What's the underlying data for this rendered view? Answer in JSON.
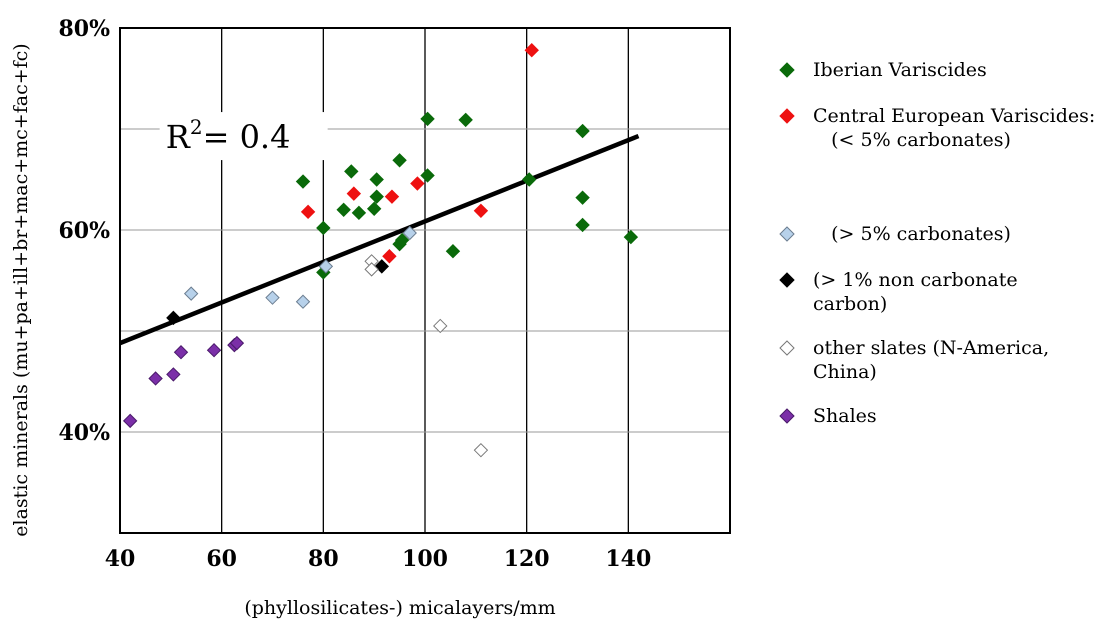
{
  "chart_data": {
    "type": "scatter",
    "xlabel": "(phyllosilicates-) micalayers/mm",
    "ylabel": "elastic minerals (mu+pa+ill+br+mac+mc+fac+fc)",
    "xlim": [
      40,
      160
    ],
    "ylim": [
      30,
      80
    ],
    "x_ticks": [
      "40",
      "60",
      "80",
      "100",
      "120",
      "140"
    ],
    "y_ticks": [
      {
        "value": 80,
        "label": "80%"
      },
      {
        "value": 60,
        "label": "60%"
      },
      {
        "value": 40,
        "label": "40%"
      }
    ],
    "grid": true,
    "legend_position": "right",
    "annotation": {
      "base": "R",
      "sup": "2",
      "rest": "= 0.4"
    },
    "trendline": {
      "x": [
        40,
        142
      ],
      "y": [
        48.8,
        69.3
      ]
    },
    "series": [
      {
        "name": "Iberian Variscides",
        "color": "#0a6a0a",
        "stroke": "#0a6a0a",
        "x": [
          76,
          80,
          80,
          84,
          85.5,
          87,
          90,
          90.5,
          90.5,
          95,
          95,
          95.5,
          100.5,
          100.5,
          105.5,
          108,
          120.5,
          131,
          131,
          131,
          140.5
        ],
        "y": [
          64.8,
          60.2,
          55.8,
          62,
          65.8,
          61.7,
          62.1,
          63.3,
          65,
          66.9,
          58.6,
          59.0,
          71,
          65.4,
          57.9,
          70.9,
          65.0,
          69.8,
          63.2,
          60.5,
          59.3
        ]
      },
      {
        "name": "Central European Variscides:\n   (< 5% carbonates)",
        "color": "#ee1111",
        "stroke": "#ee1111",
        "x": [
          77,
          86,
          93.5,
          93,
          98.5,
          111,
          121
        ],
        "y": [
          61.8,
          63.6,
          63.3,
          57.4,
          64.6,
          61.9,
          77.8
        ]
      },
      {
        "name": "   (> 5% carbonates)",
        "color": "#b7d1ea",
        "stroke": "#6b7d90",
        "x": [
          54,
          70,
          76,
          80.5,
          97
        ],
        "y": [
          53.7,
          53.3,
          52.9,
          56.4,
          59.7
        ]
      },
      {
        "name": "(> 1% non carbonate\ncarbon)",
        "color": "#000000",
        "stroke": "#000000",
        "x": [
          50.5,
          91.5
        ],
        "y": [
          51.3,
          56.4
        ]
      },
      {
        "name": "other slates (N-America,\nChina)",
        "color": "#ffffff",
        "stroke": "#777777",
        "x": [
          89.5,
          89.5,
          103,
          111
        ],
        "y": [
          56.9,
          56.1,
          50.5,
          38.2
        ]
      },
      {
        "name": "Shales",
        "color": "#7b2fa8",
        "stroke": "#4a1a6a",
        "x": [
          42,
          47,
          50.5,
          52,
          58.5,
          62.5,
          63
        ],
        "y": [
          41.1,
          45.3,
          45.7,
          47.9,
          48.1,
          48.6,
          48.8
        ]
      }
    ]
  }
}
